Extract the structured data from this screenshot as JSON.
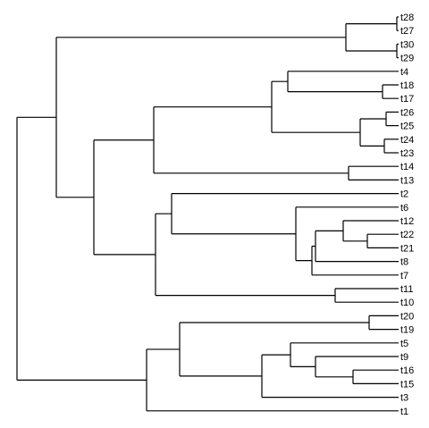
{
  "tree": {
    "tips": [
      "t28",
      "t27",
      "t30",
      "t29",
      "t4",
      "t18",
      "t17",
      "t26",
      "t25",
      "t24",
      "t23",
      "t14",
      "t13",
      "t2",
      "t6",
      "t12",
      "t22",
      "t21",
      "t8",
      "t7",
      "t11",
      "t10",
      "t20",
      "t19",
      "t5",
      "t9",
      "t16",
      "t15",
      "t3",
      "t1"
    ],
    "newick": "((((t28,t27),(t30,t29)),(((t4,(t18,t17)),((t26,t25),(t24,t23))),(t14,t13)),((t2,(t6,((t12,(t22,t21)),t8),t7))),(t11,t10))),(((t20,t19),((t5,(t9,(t16,t15))),t3)),t1));",
    "colors": {
      "line": "#000000",
      "label": "#000000",
      "background": "#ffffff"
    }
  }
}
